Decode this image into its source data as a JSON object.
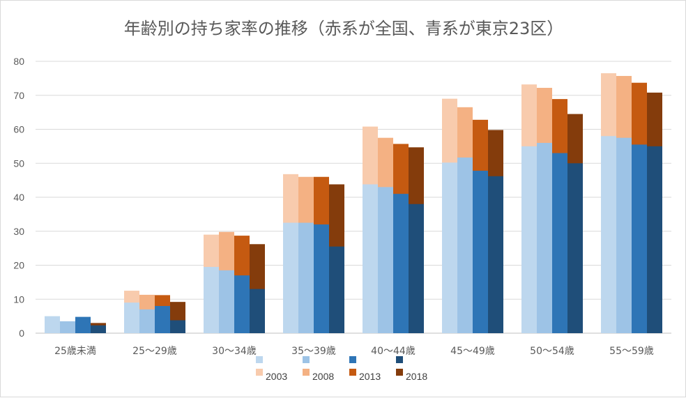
{
  "chart_data": {
    "type": "bar",
    "title": "年齢別の持ち家率の推移（赤系が全国、青系が東京23区）",
    "ylim": [
      0,
      80
    ],
    "yticks": [
      "0",
      "10",
      "20",
      "30",
      "40",
      "50",
      "60",
      "70",
      "80"
    ],
    "grid": true,
    "legend_position": "bottom",
    "categories": [
      "25歳未満",
      "25〜29歳",
      "30〜34歳",
      "35〜39歳",
      "40〜44歳",
      "45〜49歳",
      "50〜54歳",
      "55〜59歳"
    ],
    "years": [
      "2003",
      "2008",
      "2013",
      "2018"
    ],
    "series": [
      {
        "name": "2003",
        "group": "tokyo23",
        "color": "#bdd7ee",
        "values": [
          5.0,
          9.0,
          19.5,
          32.5,
          43.8,
          50.2,
          55.0,
          58.0
        ]
      },
      {
        "name": "2008",
        "group": "tokyo23",
        "color": "#9dc3e6",
        "values": [
          3.5,
          7.0,
          18.5,
          32.5,
          43.0,
          51.7,
          56.0,
          57.5
        ]
      },
      {
        "name": "2013",
        "group": "tokyo23",
        "color": "#2e75b6",
        "values": [
          4.8,
          8.0,
          17.0,
          32.0,
          41.0,
          47.8,
          53.0,
          55.5
        ]
      },
      {
        "name": "2018",
        "group": "tokyo23",
        "color": "#1f4e79",
        "values": [
          2.3,
          3.8,
          13.0,
          25.5,
          38.0,
          46.2,
          50.0,
          55.0
        ]
      },
      {
        "name": "2003",
        "group": "national",
        "color": "#f8cbad",
        "values": [
          4.0,
          12.5,
          29.0,
          46.8,
          60.8,
          69.0,
          73.2,
          76.5
        ]
      },
      {
        "name": "2008",
        "group": "national",
        "color": "#f4b183",
        "values": [
          3.0,
          11.3,
          29.8,
          46.0,
          57.5,
          66.5,
          72.2,
          75.7
        ]
      },
      {
        "name": "2013",
        "group": "national",
        "color": "#c55a11",
        "values": [
          3.0,
          11.2,
          28.7,
          46.0,
          55.7,
          62.8,
          68.9,
          73.7
        ]
      },
      {
        "name": "2018",
        "group": "national",
        "color": "#843c0c",
        "values": [
          3.0,
          9.2,
          26.2,
          43.8,
          54.7,
          59.8,
          64.5,
          70.8
        ]
      }
    ]
  }
}
